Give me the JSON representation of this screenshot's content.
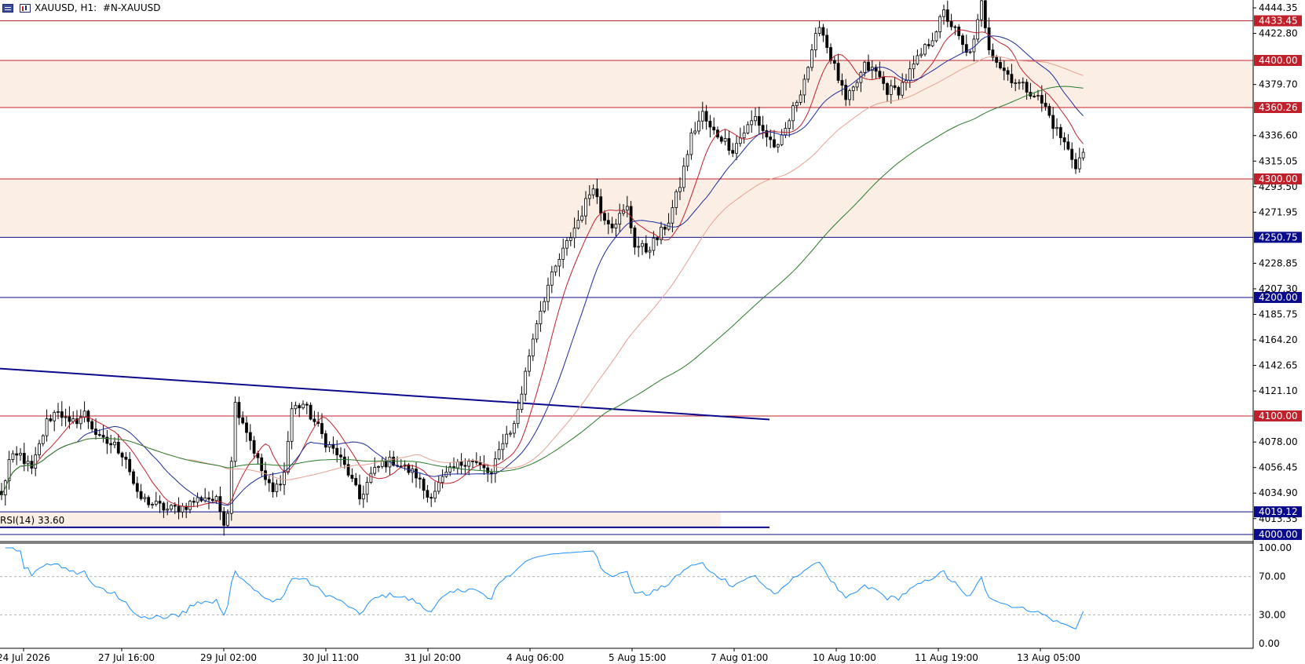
{
  "header": {
    "symbol": "XAUUSD",
    "timeframe": "H1:",
    "instrument": "#N-XAUUSD",
    "icons": [
      "list-icon",
      "chart-window-icon"
    ]
  },
  "rsi_label": "RSI(14) 33.60",
  "chart_data": [
    {
      "type": "candlestick",
      "symbol": "#N-XAUUSD",
      "timeframe": "H1",
      "ylim": [
        3994,
        4451
      ],
      "y_ticks": [
        "4444.35",
        "4422.80",
        "4379.70",
        "4336.60",
        "4315.05",
        "4293.50",
        "4271.95",
        "4228.85",
        "4207.30",
        "4185.75",
        "4164.20",
        "4142.65",
        "4121.10",
        "4078.00",
        "4056.45",
        "4034.90",
        "4013.35"
      ],
      "x_tick_labels": [
        "24 Jul 2026",
        "27 Jul 16:00",
        "29 Jul 02:00",
        "30 Jul 11:00",
        "31 Jul 20:00",
        "4 Aug 06:00",
        "5 Aug 15:00",
        "7 Aug 01:00",
        "10 Aug 10:00",
        "11 Aug 19:00",
        "13 Aug 05:00"
      ],
      "horizontal_levels": [
        {
          "value": 4433.45,
          "label": "4433.45",
          "color": "#c0202a"
        },
        {
          "value": 4400.0,
          "label": "4400.00",
          "color": "#c0202a"
        },
        {
          "value": 4360.26,
          "label": "4360.26",
          "color": "#c0202a"
        },
        {
          "value": 4300.0,
          "label": "4300.00",
          "color": "#c0202a"
        },
        {
          "value": 4250.75,
          "label": "4250.75",
          "color": "#0a0a8c"
        },
        {
          "value": 4200.0,
          "label": "4200.00",
          "color": "#0a0a8c"
        },
        {
          "value": 4100.0,
          "label": "4100.00",
          "color": "#c0202a"
        },
        {
          "value": 4019.12,
          "label": "4019.12",
          "color": "#0a0a8c"
        },
        {
          "value": 4000.0,
          "label": "4000.00",
          "color": "#0a0a8c"
        }
      ],
      "zones": [
        {
          "from": 4360.26,
          "to": 4400.0,
          "color": "#fbefe5"
        },
        {
          "from": 4250.75,
          "to": 4300.0,
          "color": "#fbefe5"
        },
        {
          "from": 4006,
          "to": 4019.12,
          "color": "#fbefe5"
        }
      ],
      "trendline": {
        "start": 4140,
        "end": 4097,
        "color": "#0a0a8c"
      },
      "support_line": {
        "value": 4006,
        "color": "#0a0a8c"
      },
      "moving_averages": [
        {
          "name": "",
          "color": "#c0202a"
        },
        {
          "name": "",
          "color": "#1c2a9a"
        },
        {
          "name": "",
          "color": "#e8a090"
        },
        {
          "name": "",
          "color": "#2a7a2a"
        }
      ],
      "anchors": [
        [
          0,
          4032
        ],
        [
          2,
          4062
        ],
        [
          5,
          4067
        ],
        [
          8,
          4054
        ],
        [
          12,
          4095
        ],
        [
          15,
          4106
        ],
        [
          18,
          4092
        ],
        [
          22,
          4102
        ],
        [
          26,
          4080
        ],
        [
          30,
          4075
        ],
        [
          33,
          4065
        ],
        [
          36,
          4032
        ],
        [
          40,
          4026
        ],
        [
          44,
          4021
        ],
        [
          48,
          4023
        ],
        [
          51,
          4028
        ],
        [
          54,
          4032
        ],
        [
          57,
          4028
        ],
        [
          59,
          4012
        ],
        [
          60,
          4020
        ],
        [
          62,
          4110
        ],
        [
          64,
          4096
        ],
        [
          66,
          4080
        ],
        [
          68,
          4062
        ],
        [
          70,
          4046
        ],
        [
          72,
          4035
        ],
        [
          75,
          4052
        ],
        [
          77,
          4106
        ],
        [
          80,
          4110
        ],
        [
          82,
          4100
        ],
        [
          84,
          4090
        ],
        [
          86,
          4078
        ],
        [
          89,
          4068
        ],
        [
          92,
          4052
        ],
        [
          95,
          4030
        ],
        [
          98,
          4050
        ],
        [
          101,
          4060
        ],
        [
          104,
          4062
        ],
        [
          107,
          4056
        ],
        [
          110,
          4050
        ],
        [
          113,
          4032
        ],
        [
          115,
          4038
        ],
        [
          118,
          4050
        ],
        [
          121,
          4058
        ],
        [
          124,
          4064
        ],
        [
          127,
          4057
        ],
        [
          130,
          4050
        ],
        [
          133,
          4080
        ],
        [
          136,
          4092
        ],
        [
          138,
          4120
        ],
        [
          140,
          4152
        ],
        [
          142,
          4180
        ],
        [
          145,
          4210
        ],
        [
          148,
          4232
        ],
        [
          151,
          4252
        ],
        [
          154,
          4272
        ],
        [
          157,
          4296
        ],
        [
          159,
          4272
        ],
        [
          162,
          4262
        ],
        [
          166,
          4275
        ],
        [
          168,
          4245
        ],
        [
          171,
          4240
        ],
        [
          174,
          4250
        ],
        [
          177,
          4265
        ],
        [
          180,
          4295
        ],
        [
          183,
          4336
        ],
        [
          186,
          4355
        ],
        [
          188,
          4342
        ],
        [
          191,
          4335
        ],
        [
          194,
          4325
        ],
        [
          197,
          4340
        ],
        [
          200,
          4352
        ],
        [
          203,
          4336
        ],
        [
          206,
          4325
        ],
        [
          209,
          4350
        ],
        [
          212,
          4375
        ],
        [
          215,
          4405
        ],
        [
          217,
          4432
        ],
        [
          219,
          4412
        ],
        [
          222,
          4385
        ],
        [
          224,
          4365
        ],
        [
          226,
          4375
        ],
        [
          229,
          4395
        ],
        [
          232,
          4390
        ],
        [
          235,
          4375
        ],
        [
          238,
          4375
        ],
        [
          241,
          4390
        ],
        [
          244,
          4405
        ],
        [
          247,
          4420
        ],
        [
          250,
          4440
        ],
        [
          253,
          4425
        ],
        [
          256,
          4405
        ],
        [
          258,
          4415
        ],
        [
          260,
          4448
        ],
        [
          262,
          4412
        ],
        [
          265,
          4395
        ],
        [
          268,
          4385
        ],
        [
          271,
          4378
        ],
        [
          274,
          4372
        ],
        [
          277,
          4360
        ],
        [
          279,
          4346
        ],
        [
          282,
          4330
        ],
        [
          285,
          4312
        ],
        [
          287,
          4322
        ]
      ],
      "rsi": {
        "period": 14,
        "value": 33.6,
        "ylim": [
          0,
          100
        ],
        "levels": [
          70,
          30
        ],
        "tick_labels": [
          "100.00",
          "70.00",
          "30.00",
          "0.00"
        ],
        "color": "#1e90ff"
      }
    }
  ]
}
